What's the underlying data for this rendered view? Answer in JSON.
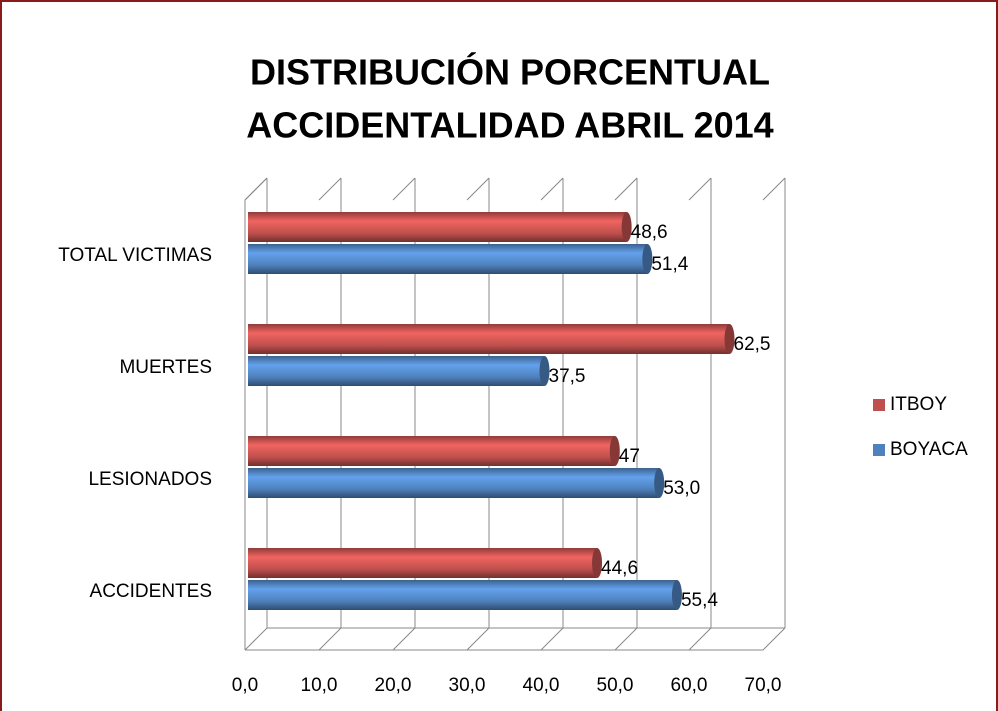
{
  "chart_data": {
    "type": "bar",
    "orientation": "horizontal",
    "title": [
      "DISTRIBUCIÓN PORCENTUAL",
      "ACCIDENTALIDAD ABRIL 2014"
    ],
    "categories": [
      "ACCIDENTES",
      "LESIONADOS",
      "MUERTES",
      "TOTAL VICTIMAS"
    ],
    "series": [
      {
        "name": "ITBOY",
        "color": "#c0504d",
        "values": [
          44.6,
          47,
          62.5,
          48.6
        ],
        "value_labels": [
          "44,6",
          "47",
          "62,5",
          "48,6"
        ]
      },
      {
        "name": "BOYACA",
        "color": "#4f81bd",
        "values": [
          55.4,
          53.0,
          37.5,
          51.4
        ],
        "value_labels": [
          "55,4",
          "53,0",
          "37,5",
          "51,4"
        ]
      }
    ],
    "xlim": [
      0,
      70
    ],
    "xticks": [
      {
        "value": 0,
        "label": "0,0"
      },
      {
        "value": 10,
        "label": "10,0"
      },
      {
        "value": 20,
        "label": "20,0"
      },
      {
        "value": 30,
        "label": "30,0"
      },
      {
        "value": 40,
        "label": "40,0"
      },
      {
        "value": 50,
        "label": "50,0"
      },
      {
        "value": 60,
        "label": "60,0"
      },
      {
        "value": 70,
        "label": "70,0"
      }
    ],
    "grid": true,
    "legend": "right"
  }
}
